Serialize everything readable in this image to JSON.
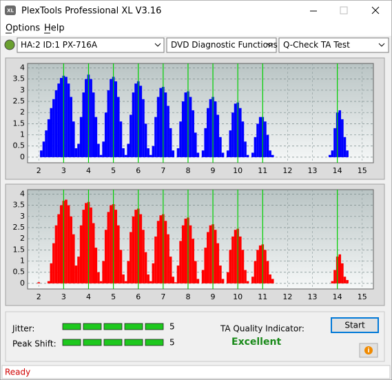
{
  "window": {
    "title": "PlexTools Professional XL V3.16"
  },
  "menu": [
    "Options",
    "Help"
  ],
  "toolbar": {
    "drive": "HA:2 ID:1  PX-716A",
    "function": "DVD Diagnostic Functions",
    "test": "Q-Check TA Test"
  },
  "chart_data": [
    {
      "type": "bar",
      "color": "#0000ff",
      "grid": true,
      "xlim": [
        1.55,
        15.45
      ],
      "ylim": [
        -0.25,
        4.2
      ],
      "xticks": [
        2,
        3,
        4,
        5,
        6,
        7,
        8,
        9,
        10,
        11,
        12,
        13,
        14,
        15
      ],
      "yticks": [
        0,
        0.5,
        1,
        1.5,
        2,
        2.5,
        3,
        3.5,
        4
      ],
      "markers": [
        3,
        4,
        5,
        6,
        7,
        8,
        9,
        10,
        11,
        14
      ],
      "marker_color": "#00d000",
      "x": [
        2.0,
        2.1,
        2.2,
        2.3,
        2.4,
        2.5,
        2.6,
        2.7,
        2.8,
        2.9,
        3.0,
        3.1,
        3.2,
        3.3,
        3.4,
        3.5,
        3.6,
        3.7,
        3.8,
        3.9,
        4.0,
        4.1,
        4.2,
        4.3,
        4.4,
        4.5,
        4.6,
        4.7,
        4.8,
        4.9,
        5.0,
        5.1,
        5.2,
        5.3,
        5.4,
        5.5,
        5.6,
        5.7,
        5.8,
        5.9,
        6.0,
        6.1,
        6.2,
        6.3,
        6.4,
        6.5,
        6.6,
        6.7,
        6.8,
        6.9,
        7.0,
        7.1,
        7.2,
        7.3,
        7.4,
        7.5,
        7.6,
        7.7,
        7.8,
        7.9,
        8.0,
        8.1,
        8.2,
        8.3,
        8.4,
        8.5,
        8.6,
        8.7,
        8.8,
        8.9,
        9.0,
        9.1,
        9.2,
        9.3,
        9.4,
        9.5,
        9.6,
        9.7,
        9.8,
        9.9,
        10.0,
        10.1,
        10.2,
        10.3,
        10.4,
        10.5,
        10.6,
        10.7,
        10.8,
        10.9,
        11.0,
        11.1,
        11.2,
        11.3,
        11.4,
        11.5,
        11.6,
        11.7,
        11.8,
        11.9,
        12.0,
        12.1,
        12.2,
        12.3,
        12.4,
        12.5,
        12.6,
        12.7,
        12.8,
        12.9,
        13.0,
        13.1,
        13.2,
        13.3,
        13.4,
        13.5,
        13.6,
        13.7,
        13.8,
        13.9,
        14.0,
        14.1,
        14.2,
        14.3,
        14.4,
        14.5,
        14.6
      ],
      "values": [
        0,
        0.3,
        0.7,
        1.2,
        1.7,
        2.2,
        2.6,
        3.0,
        3.3,
        3.55,
        3.65,
        3.6,
        3.3,
        2.7,
        1.6,
        0.4,
        0.6,
        1.8,
        2.9,
        3.5,
        3.7,
        3.5,
        2.9,
        1.8,
        0.6,
        0.1,
        0.7,
        2.0,
        3.0,
        3.5,
        3.6,
        3.4,
        2.7,
        1.6,
        0.4,
        0.1,
        0.6,
        1.9,
        2.9,
        3.3,
        3.4,
        3.2,
        2.6,
        1.5,
        0.4,
        0.1,
        0.5,
        1.8,
        2.7,
        3.1,
        3.15,
        2.9,
        2.3,
        1.3,
        0.3,
        0,
        0.4,
        1.6,
        2.5,
        2.9,
        2.95,
        2.7,
        2.1,
        1.1,
        0.2,
        0,
        0.3,
        1.3,
        2.2,
        2.6,
        2.7,
        2.5,
        1.9,
        0.9,
        0.2,
        0,
        0.3,
        1.2,
        2.0,
        2.4,
        2.45,
        2.2,
        1.6,
        0.7,
        0.1,
        0,
        0.2,
        0.9,
        1.5,
        1.8,
        1.8,
        1.6,
        1.0,
        0.3,
        0.1,
        0,
        0,
        0,
        0,
        0,
        0,
        0,
        0,
        0,
        0,
        0,
        0,
        0,
        0,
        0,
        0,
        0,
        0,
        0,
        0,
        0,
        0,
        0.1,
        0.3,
        1.3,
        2.0,
        2.1,
        1.7,
        0.9,
        0.3,
        0,
        0
      ]
    },
    {
      "type": "bar",
      "color": "#ff0000",
      "grid": true,
      "xlim": [
        1.55,
        15.45
      ],
      "ylim": [
        -0.25,
        4.2
      ],
      "xticks": [
        2,
        3,
        4,
        5,
        6,
        7,
        8,
        9,
        10,
        11,
        12,
        13,
        14,
        15
      ],
      "yticks": [
        0,
        0.5,
        1,
        1.5,
        2,
        2.5,
        3,
        3.5,
        4
      ],
      "markers": [
        3,
        4,
        5,
        6,
        7,
        8,
        9,
        10,
        11,
        14
      ],
      "marker_color": "#00d000",
      "x": [
        2.0,
        2.1,
        2.2,
        2.3,
        2.4,
        2.5,
        2.6,
        2.7,
        2.8,
        2.9,
        3.0,
        3.1,
        3.2,
        3.3,
        3.4,
        3.5,
        3.6,
        3.7,
        3.8,
        3.9,
        4.0,
        4.1,
        4.2,
        4.3,
        4.4,
        4.5,
        4.6,
        4.7,
        4.8,
        4.9,
        5.0,
        5.1,
        5.2,
        5.3,
        5.4,
        5.5,
        5.6,
        5.7,
        5.8,
        5.9,
        6.0,
        6.1,
        6.2,
        6.3,
        6.4,
        6.5,
        6.6,
        6.7,
        6.8,
        6.9,
        7.0,
        7.1,
        7.2,
        7.3,
        7.4,
        7.5,
        7.6,
        7.7,
        7.8,
        7.9,
        8.0,
        8.1,
        8.2,
        8.3,
        8.4,
        8.5,
        8.6,
        8.7,
        8.8,
        8.9,
        9.0,
        9.1,
        9.2,
        9.3,
        9.4,
        9.5,
        9.6,
        9.7,
        9.8,
        9.9,
        10.0,
        10.1,
        10.2,
        10.3,
        10.4,
        10.5,
        10.6,
        10.7,
        10.8,
        10.9,
        11.0,
        11.1,
        11.2,
        11.3,
        11.4,
        11.5,
        11.6,
        11.7,
        11.8,
        11.9,
        12.0,
        12.1,
        12.2,
        12.3,
        12.4,
        12.5,
        12.6,
        12.7,
        12.8,
        12.9,
        13.0,
        13.1,
        13.2,
        13.3,
        13.4,
        13.5,
        13.6,
        13.7,
        13.8,
        13.9,
        14.0,
        14.1,
        14.2,
        14.3,
        14.4,
        14.5,
        14.6
      ],
      "values": [
        0.05,
        0,
        0,
        0,
        0.1,
        0.9,
        1.8,
        2.6,
        3.1,
        3.5,
        3.7,
        3.75,
        3.5,
        3.0,
        2.2,
        0.8,
        1.2,
        2.6,
        3.3,
        3.6,
        3.65,
        3.4,
        2.7,
        1.6,
        0.5,
        0.1,
        1.0,
        2.4,
        3.2,
        3.5,
        3.55,
        3.3,
        2.6,
        1.5,
        0.4,
        0.1,
        1.0,
        2.3,
        3.0,
        3.3,
        3.35,
        3.1,
        2.4,
        1.4,
        0.4,
        0.1,
        0.9,
        2.1,
        2.8,
        3.05,
        3.1,
        2.8,
        2.2,
        1.2,
        0.3,
        0.05,
        0.8,
        1.9,
        2.6,
        2.9,
        2.95,
        2.6,
        2.0,
        1.0,
        0.2,
        0,
        0.6,
        1.6,
        2.3,
        2.6,
        2.65,
        2.4,
        1.8,
        0.8,
        0.2,
        0,
        0.5,
        1.5,
        2.1,
        2.4,
        2.45,
        2.1,
        1.5,
        0.6,
        0.1,
        0,
        0.3,
        1.0,
        1.5,
        1.7,
        1.75,
        1.5,
        1.0,
        0.4,
        0.2,
        0,
        0,
        0,
        0,
        0,
        0,
        0,
        0,
        0,
        0,
        0,
        0,
        0,
        0,
        0,
        0,
        0,
        0,
        0,
        0,
        0,
        0,
        0,
        0.1,
        0.6,
        1.2,
        1.3,
        0.9,
        0.3,
        0.15,
        0,
        0
      ]
    }
  ],
  "results": {
    "jitter": {
      "label": "Jitter:",
      "value": 5
    },
    "peak_shift": {
      "label": "Peak Shift:",
      "value": 5
    },
    "segment_color": "#1ec81e"
  },
  "ta_quality": {
    "label": "TA Quality Indicator:",
    "value": "Excellent"
  },
  "start_button": "Start",
  "status": "Ready"
}
